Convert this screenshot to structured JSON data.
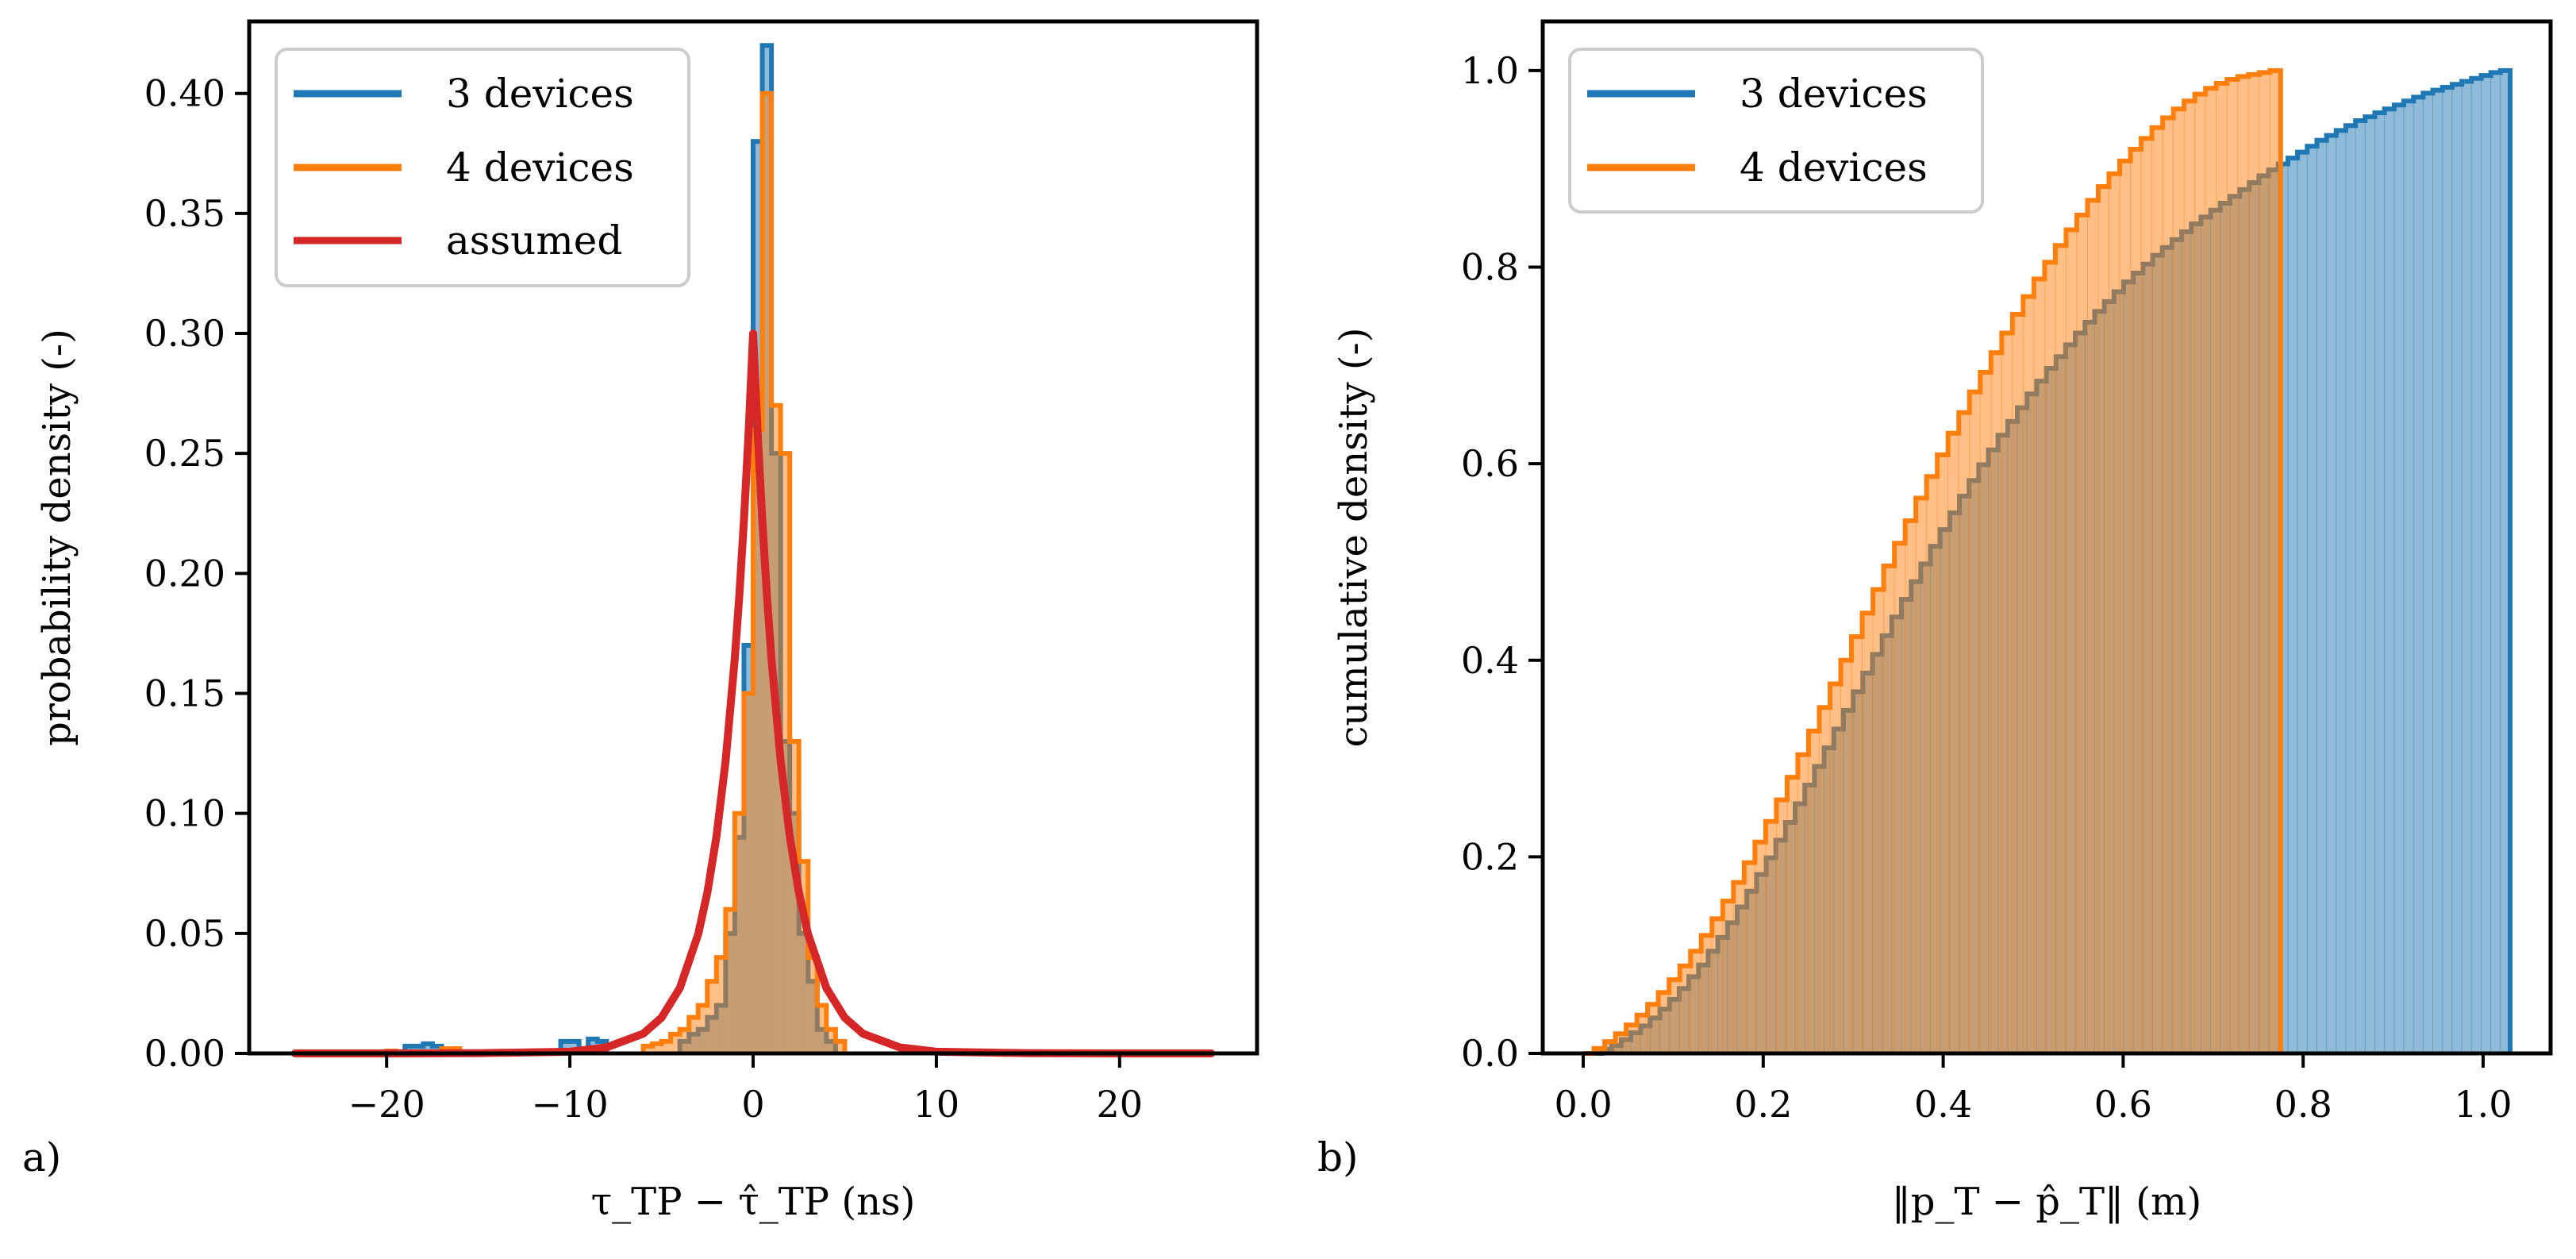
{
  "chart_data": [
    {
      "type": "histogram",
      "panel_label": "a)",
      "xlabel": "τ_TP − τ̂_TP (ns)",
      "ylabel": "probability density (-)",
      "xlim": [
        -27.5,
        27.5
      ],
      "ylim": [
        0,
        0.43
      ],
      "xticks": [
        -20,
        -10,
        0,
        10,
        20
      ],
      "xtick_labels": [
        "−20",
        "−10",
        "0",
        "10",
        "20"
      ],
      "yticks": [
        0,
        0.05,
        0.1,
        0.15,
        0.2,
        0.25,
        0.3,
        0.35,
        0.4
      ],
      "ytick_labels": [
        "0.00",
        "0.05",
        "0.10",
        "0.15",
        "0.20",
        "0.25",
        "0.30",
        "0.35",
        "0.40"
      ],
      "legend_position": "top-left",
      "grid": false,
      "series": [
        {
          "name": "3 devices",
          "color": "#1f77b4",
          "kind": "step-histogram",
          "bin_width": 0.5,
          "bins": [
            {
              "x": -19,
              "y": 0.003
            },
            {
              "x": -18.5,
              "y": 0.003
            },
            {
              "x": -18,
              "y": 0.004
            },
            {
              "x": -17.5,
              "y": 0.003
            },
            {
              "x": -10.5,
              "y": 0.005
            },
            {
              "x": -10,
              "y": 0.005
            },
            {
              "x": -9,
              "y": 0.006
            },
            {
              "x": -8.5,
              "y": 0.005
            },
            {
              "x": -4,
              "y": 0.005
            },
            {
              "x": -3.5,
              "y": 0.008
            },
            {
              "x": -3,
              "y": 0.01
            },
            {
              "x": -2.5,
              "y": 0.015
            },
            {
              "x": -2,
              "y": 0.02
            },
            {
              "x": -1.5,
              "y": 0.05
            },
            {
              "x": -1,
              "y": 0.09
            },
            {
              "x": -0.5,
              "y": 0.17
            },
            {
              "x": 0,
              "y": 0.38
            },
            {
              "x": 0.5,
              "y": 0.42
            },
            {
              "x": 1,
              "y": 0.25
            },
            {
              "x": 1.5,
              "y": 0.13
            },
            {
              "x": 2,
              "y": 0.1
            },
            {
              "x": 2.5,
              "y": 0.05
            },
            {
              "x": 3,
              "y": 0.03
            },
            {
              "x": 3.5,
              "y": 0.01
            },
            {
              "x": 4,
              "y": 0.005
            }
          ]
        },
        {
          "name": "4 devices",
          "color": "#ff7f0e",
          "kind": "step-histogram",
          "bin_width": 0.5,
          "bins": [
            {
              "x": -20,
              "y": 0.001
            },
            {
              "x": -17,
              "y": 0.002
            },
            {
              "x": -16.5,
              "y": 0.002
            },
            {
              "x": -6,
              "y": 0.003
            },
            {
              "x": -5.5,
              "y": 0.004
            },
            {
              "x": -5,
              "y": 0.005
            },
            {
              "x": -4.5,
              "y": 0.008
            },
            {
              "x": -4,
              "y": 0.01
            },
            {
              "x": -3.5,
              "y": 0.015
            },
            {
              "x": -3,
              "y": 0.02
            },
            {
              "x": -2.5,
              "y": 0.03
            },
            {
              "x": -2,
              "y": 0.04
            },
            {
              "x": -1.5,
              "y": 0.06
            },
            {
              "x": -1,
              "y": 0.1
            },
            {
              "x": -0.5,
              "y": 0.15
            },
            {
              "x": 0,
              "y": 0.26
            },
            {
              "x": 0.5,
              "y": 0.4
            },
            {
              "x": 1,
              "y": 0.27
            },
            {
              "x": 1.5,
              "y": 0.25
            },
            {
              "x": 2,
              "y": 0.13
            },
            {
              "x": 2.5,
              "y": 0.08
            },
            {
              "x": 3,
              "y": 0.04
            },
            {
              "x": 3.5,
              "y": 0.02
            },
            {
              "x": 4,
              "y": 0.01
            },
            {
              "x": 4.5,
              "y": 0.005
            }
          ]
        },
        {
          "name": "assumed",
          "color": "#d62728",
          "kind": "line",
          "description_formula": "Laplace density, location 0, scale 1.667",
          "x": [
            -25,
            -20,
            -15,
            -10,
            -8,
            -6,
            -5,
            -4,
            -3,
            -2.5,
            -2,
            -1.5,
            -1,
            -0.75,
            -0.5,
            -0.25,
            0,
            0.25,
            0.5,
            0.75,
            1,
            1.5,
            2,
            2.5,
            3,
            4,
            5,
            6,
            8,
            10,
            15,
            20,
            25
          ],
          "y": [
            0.0,
            0.0,
            0.0001,
            0.0007,
            0.0025,
            0.0082,
            0.0149,
            0.0272,
            0.0496,
            0.0669,
            0.0904,
            0.122,
            0.1646,
            0.1912,
            0.2222,
            0.2582,
            0.3,
            0.2582,
            0.2222,
            0.1912,
            0.1646,
            0.122,
            0.0904,
            0.0669,
            0.0496,
            0.0272,
            0.0149,
            0.0082,
            0.0025,
            0.0007,
            0.0001,
            0.0,
            0.0
          ]
        }
      ]
    },
    {
      "type": "histogram",
      "panel_label": "b)",
      "xlabel": "‖p_T − p̂_T‖ (m)",
      "ylabel": "cumulative density (-)",
      "xlim": [
        -0.045,
        1.075
      ],
      "ylim": [
        0,
        1.05
      ],
      "xticks": [
        0.0,
        0.2,
        0.4,
        0.6,
        0.8,
        1.0
      ],
      "xtick_labels": [
        "0.0",
        "0.2",
        "0.4",
        "0.6",
        "0.8",
        "1.0"
      ],
      "yticks": [
        0,
        0.2,
        0.4,
        0.6,
        0.8,
        1.0
      ],
      "ytick_labels": [
        "0.0",
        "0.2",
        "0.4",
        "0.6",
        "0.8",
        "1.0"
      ],
      "legend_position": "top-left",
      "grid": false,
      "series": [
        {
          "name": "3 devices",
          "color": "#1f77b4",
          "kind": "cumulative-step-histogram",
          "bin_width": 0.0124,
          "x_start": 0.0,
          "edges_approx": [
            0.01,
            1.03
          ],
          "cdf": [
            0.0,
            0.004,
            0.008,
            0.014,
            0.021,
            0.028,
            0.036,
            0.045,
            0.055,
            0.066,
            0.078,
            0.09,
            0.104,
            0.118,
            0.133,
            0.149,
            0.165,
            0.182,
            0.199,
            0.217,
            0.235,
            0.254,
            0.273,
            0.292,
            0.311,
            0.33,
            0.349,
            0.368,
            0.387,
            0.406,
            0.425,
            0.444,
            0.462,
            0.48,
            0.498,
            0.516,
            0.533,
            0.55,
            0.567,
            0.583,
            0.599,
            0.614,
            0.629,
            0.643,
            0.657,
            0.671,
            0.684,
            0.697,
            0.709,
            0.721,
            0.733,
            0.744,
            0.755,
            0.765,
            0.775,
            0.785,
            0.794,
            0.803,
            0.812,
            0.82,
            0.828,
            0.836,
            0.844,
            0.851,
            0.858,
            0.865,
            0.872,
            0.879,
            0.886,
            0.893,
            0.899,
            0.905,
            0.911,
            0.917,
            0.923,
            0.929,
            0.934,
            0.939,
            0.944,
            0.949,
            0.953,
            0.957,
            0.961,
            0.965,
            0.969,
            0.973,
            0.977,
            0.98,
            0.983,
            0.986,
            0.989,
            0.992,
            0.995,
            0.998,
            1.0
          ]
        },
        {
          "name": "4 devices",
          "color": "#ff7f0e",
          "kind": "cumulative-step-histogram",
          "bin_width": 0.0124,
          "x_start": 0.0,
          "edges_approx": [
            0.0,
            0.775
          ],
          "cdf": [
            0.0,
            0.005,
            0.012,
            0.02,
            0.029,
            0.039,
            0.05,
            0.062,
            0.075,
            0.089,
            0.104,
            0.12,
            0.137,
            0.155,
            0.174,
            0.194,
            0.215,
            0.236,
            0.258,
            0.281,
            0.304,
            0.328,
            0.352,
            0.376,
            0.4,
            0.424,
            0.448,
            0.472,
            0.496,
            0.519,
            0.542,
            0.565,
            0.587,
            0.609,
            0.631,
            0.652,
            0.673,
            0.693,
            0.713,
            0.733,
            0.752,
            0.77,
            0.788,
            0.805,
            0.822,
            0.838,
            0.853,
            0.868,
            0.882,
            0.895,
            0.908,
            0.92,
            0.931,
            0.942,
            0.952,
            0.961,
            0.969,
            0.976,
            0.982,
            0.987,
            0.991,
            0.994,
            0.996,
            0.998,
            1.0
          ]
        }
      ]
    }
  ]
}
